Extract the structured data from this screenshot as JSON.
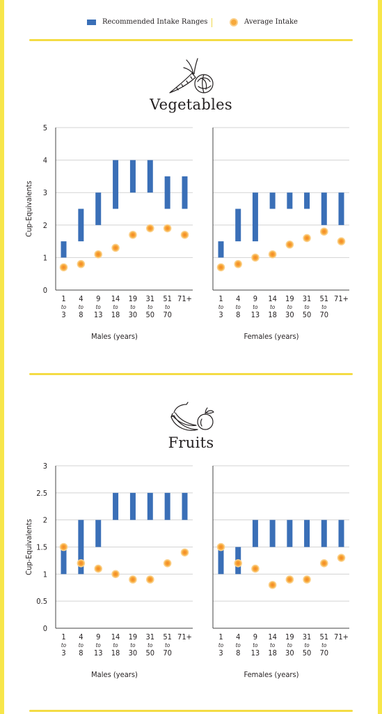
{
  "colors": {
    "range_bar": "#3a6fb7",
    "intake_dot_fill": "#f7a93b",
    "intake_dot_stroke": "#f4b04a",
    "accent_line": "#f4dc45",
    "grid": "#d3d3d3"
  },
  "legend": {
    "range_label": "Recommended Intake Ranges",
    "intake_label": "Average Intake"
  },
  "icons": {
    "vegetables": "carrot-cabbage-icon",
    "fruits": "banana-apple-icon"
  },
  "sections": [
    {
      "title": "Vegetables",
      "chart_data": [
        {
          "type": "range-bar-and-scatter",
          "ylabel": "Cup-Equivalents",
          "xlabel": "Males (years)",
          "ylim": [
            0,
            5
          ],
          "yticks": [
            "0",
            "1",
            "2",
            "3",
            "4",
            "5"
          ],
          "categories": [
            [
              "1",
              "to",
              "3"
            ],
            [
              "4",
              "to",
              "8"
            ],
            [
              "9",
              "to",
              "13"
            ],
            [
              "14",
              "to",
              "18"
            ],
            [
              "19",
              "to",
              "30"
            ],
            [
              "31",
              "to",
              "50"
            ],
            [
              "51",
              "to",
              "70"
            ],
            [
              "71+",
              "",
              ""
            ]
          ],
          "recommended_ranges": [
            [
              1,
              1.5
            ],
            [
              1.5,
              2.5
            ],
            [
              2,
              3
            ],
            [
              2.5,
              4
            ],
            [
              3,
              4
            ],
            [
              3,
              4
            ],
            [
              2.5,
              3.5
            ],
            [
              2.5,
              3.5
            ]
          ],
          "average_intake": [
            0.7,
            0.8,
            1.1,
            1.3,
            1.7,
            1.9,
            1.9,
            1.7
          ]
        },
        {
          "type": "range-bar-and-scatter",
          "ylabel": "",
          "xlabel": "Females (years)",
          "ylim": [
            0,
            5
          ],
          "yticks": [],
          "categories": [
            [
              "1",
              "to",
              "3"
            ],
            [
              "4",
              "to",
              "8"
            ],
            [
              "9",
              "to",
              "13"
            ],
            [
              "14",
              "to",
              "18"
            ],
            [
              "19",
              "to",
              "30"
            ],
            [
              "31",
              "to",
              "50"
            ],
            [
              "51",
              "to",
              "70"
            ],
            [
              "71+",
              "",
              ""
            ]
          ],
          "recommended_ranges": [
            [
              1,
              1.5
            ],
            [
              1.5,
              2.5
            ],
            [
              1.5,
              3
            ],
            [
              2.5,
              3
            ],
            [
              2.5,
              3
            ],
            [
              2.5,
              3
            ],
            [
              2,
              3
            ],
            [
              2,
              3
            ]
          ],
          "average_intake": [
            0.7,
            0.8,
            1.0,
            1.1,
            1.4,
            1.6,
            1.8,
            1.5
          ]
        }
      ]
    },
    {
      "title": "Fruits",
      "chart_data": [
        {
          "type": "range-bar-and-scatter",
          "ylabel": "Cup-Equivalents",
          "xlabel": "Males (years)",
          "ylim": [
            0,
            3
          ],
          "yticks": [
            "0",
            "0.5",
            "1",
            "1.5",
            "2",
            "2.5",
            "3"
          ],
          "categories": [
            [
              "1",
              "to",
              "3"
            ],
            [
              "4",
              "to",
              "8"
            ],
            [
              "9",
              "to",
              "13"
            ],
            [
              "14",
              "to",
              "18"
            ],
            [
              "19",
              "to",
              "30"
            ],
            [
              "31",
              "to",
              "50"
            ],
            [
              "51",
              "to",
              "70"
            ],
            [
              "71+",
              "",
              ""
            ]
          ],
          "recommended_ranges": [
            [
              1,
              1.5
            ],
            [
              1,
              2
            ],
            [
              1.5,
              2
            ],
            [
              2,
              2.5
            ],
            [
              2,
              2.5
            ],
            [
              2,
              2.5
            ],
            [
              2,
              2.5
            ],
            [
              2,
              2.5
            ]
          ],
          "average_intake": [
            1.5,
            1.2,
            1.1,
            1.0,
            0.9,
            0.9,
            1.2,
            1.4
          ]
        },
        {
          "type": "range-bar-and-scatter",
          "ylabel": "",
          "xlabel": "Females (years)",
          "ylim": [
            0,
            3
          ],
          "yticks": [],
          "categories": [
            [
              "1",
              "to",
              "3"
            ],
            [
              "4",
              "to",
              "8"
            ],
            [
              "9",
              "to",
              "13"
            ],
            [
              "14",
              "to",
              "18"
            ],
            [
              "19",
              "to",
              "30"
            ],
            [
              "31",
              "to",
              "50"
            ],
            [
              "51",
              "to",
              "70"
            ],
            [
              "71+",
              "",
              ""
            ]
          ],
          "recommended_ranges": [
            [
              1,
              1.5
            ],
            [
              1,
              1.5
            ],
            [
              1.5,
              2
            ],
            [
              1.5,
              2
            ],
            [
              1.5,
              2
            ],
            [
              1.5,
              2
            ],
            [
              1.5,
              2
            ],
            [
              1.5,
              2
            ]
          ],
          "average_intake": [
            1.5,
            1.2,
            1.1,
            0.8,
            0.9,
            0.9,
            1.2,
            1.3
          ]
        }
      ]
    }
  ]
}
